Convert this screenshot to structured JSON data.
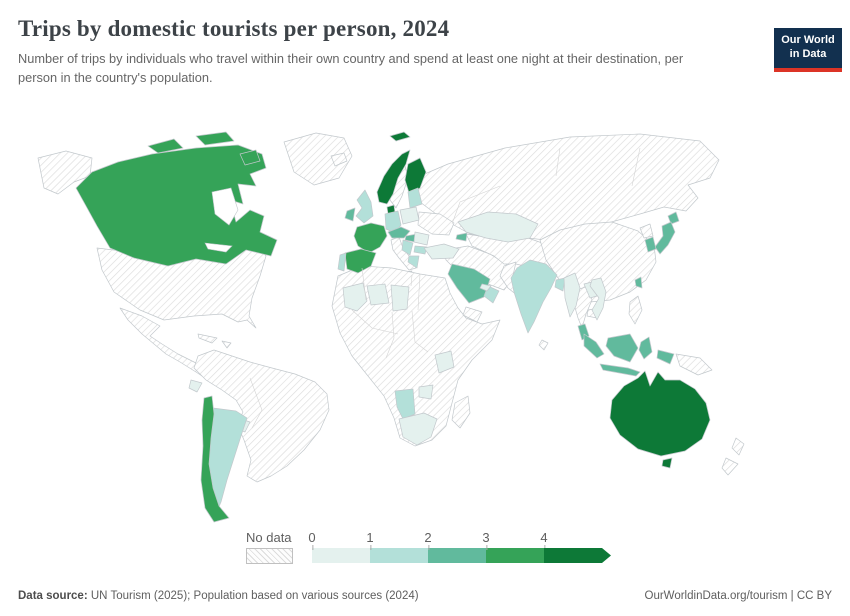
{
  "header": {
    "title": "Trips by domestic tourists per person, 2024",
    "subtitle": "Number of trips by individuals who travel within their own country and spend at least one night at their destination, per person in the country's population.",
    "logo": {
      "line1": "Our World",
      "line2": "in Data",
      "bg_color": "#12304f",
      "accent_color": "#dc3426"
    }
  },
  "legend": {
    "no_data_label": "No data",
    "ticks": [
      "0",
      "1",
      "2",
      "3",
      "4"
    ],
    "bins": [
      {
        "range": "0-1",
        "color": "#e4f1ee"
      },
      {
        "range": "1-2",
        "color": "#b3e0d9"
      },
      {
        "range": "2-3",
        "color": "#61ba9d"
      },
      {
        "range": "3-4",
        "color": "#35a358"
      },
      {
        "range": "4+",
        "color": "#0d7937"
      }
    ]
  },
  "chart_data": {
    "type": "choropleth_map",
    "title": "Trips by domestic tourists per person, 2024",
    "unit": "trips per person",
    "legend_bins": [
      "0-1",
      "1-2",
      "2-3",
      "3-4",
      "4+"
    ],
    "countries": {
      "Canada": "3-4",
      "Chile": "3-4",
      "Argentina": "1-2",
      "Paraguay": "0-1",
      "Ecuador": "0-1",
      "Norway": "4+",
      "Finland": "4+",
      "Denmark": "4+",
      "United Kingdom": "1-2",
      "Ireland": "2-3",
      "France": "3-4",
      "Spain": "3-4",
      "Portugal": "1-2",
      "Germany": "1-2",
      "Poland": "0-1",
      "Austria": "2-3",
      "Hungary": "2-3",
      "Serbia": "1-2",
      "Romania": "0-1",
      "Bulgaria": "1-2",
      "Greece": "1-2",
      "Baltic states": "1-2",
      "Turkey": "0-1",
      "Azerbaijan": "2-3",
      "Kazakhstan": "0-1",
      "Saudi Arabia": "2-3",
      "Oman": "1-2",
      "United Arab Emirates": "0-1",
      "India": "1-2",
      "Bangladesh": "1-2",
      "Myanmar": "0-1",
      "Laos": "0-1",
      "Vietnam": "0-1",
      "Malaysia": "2-3",
      "Indonesia": "2-3",
      "Japan": "2-3",
      "South Korea": "2-3",
      "Taiwan": "2-3",
      "Mali": "0-1",
      "Niger": "0-1",
      "Chad": "0-1",
      "Tanzania": "0-1",
      "Namibia": "1-2",
      "Zimbabwe": "0-1",
      "South Africa": "0-1",
      "Australia": "4+"
    },
    "no_data_countries": [
      "United States",
      "Mexico",
      "Greenland",
      "Cuba",
      "Brazil",
      "Peru",
      "Bolivia",
      "Colombia",
      "Venezuela",
      "Iceland",
      "Sweden",
      "Italy",
      "Ukraine",
      "Belarus",
      "Russia",
      "China",
      "Mongolia",
      "Iran",
      "Pakistan",
      "Thailand",
      "Cambodia",
      "Philippines",
      "North Korea",
      "Sri Lanka",
      "Yemen",
      "Papua New Guinea",
      "New Zealand",
      "Madagascar",
      "Egypt",
      "Algeria",
      "Libya",
      "Morocco",
      "Sudan",
      "Ethiopia",
      "Nigeria",
      "DR Congo",
      "Angola",
      "Kenya"
    ]
  },
  "footer": {
    "source_label": "Data source:",
    "source_text": " UN Tourism (2025); Population based on various sources (2024)",
    "credit": "OurWorldinData.org/tourism | CC BY"
  }
}
